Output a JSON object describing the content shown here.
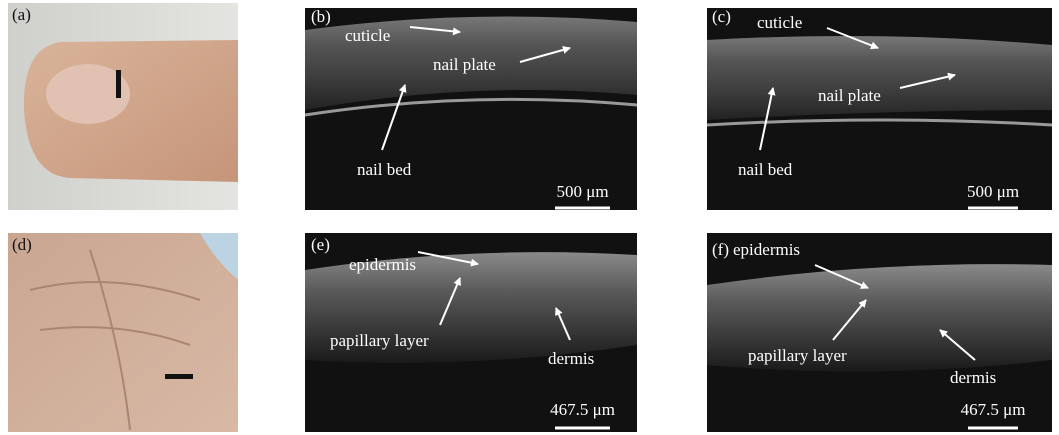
{
  "panels": [
    {
      "label": "(a)"
    },
    {
      "label": "(b)",
      "annotations": [
        "cuticle",
        "nail plate",
        "nail bed"
      ],
      "scale_bar": "500 μm"
    },
    {
      "label": "(c)",
      "annotations": [
        "cuticle",
        "nail plate",
        "nail bed"
      ],
      "scale_bar": "500 μm"
    },
    {
      "label": "(d)"
    },
    {
      "label": "(e)",
      "annotations": [
        "epidermis",
        "papillary layer",
        "dermis"
      ],
      "scale_bar": "467.5 μm"
    },
    {
      "label": "(f)",
      "annotations": [
        "epidermis",
        "papillary layer",
        "dermis"
      ],
      "scale_bar": "467.5 μm"
    }
  ]
}
